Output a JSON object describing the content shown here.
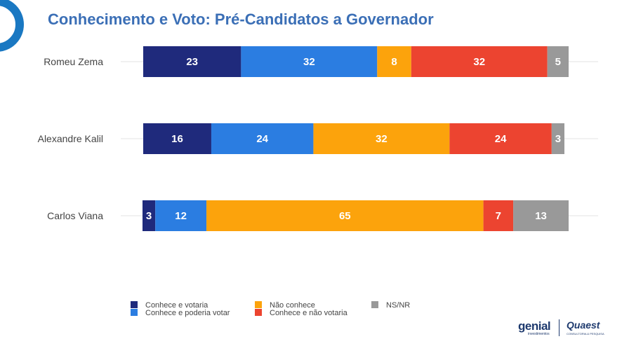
{
  "header": {
    "title": "Conhecimento e Voto: Pré-Candidatos a Governador"
  },
  "colors": {
    "conhece_votaria": "#1f2a7c",
    "conhece_poderia_votar": "#2b7de1",
    "nao_conhece": "#fca30c",
    "conhece_nao_votaria": "#ec4430",
    "ns_nr": "#999999",
    "title": "#3b6fb6",
    "brand": "#1e3a6e"
  },
  "chart_data": {
    "type": "bar",
    "orientation": "horizontal",
    "stacked": true,
    "title": "Conhecimento e Voto: Pré-Candidatos a Governador",
    "categories": [
      "Romeu Zema",
      "Alexandre Kalil",
      "Carlos Viana"
    ],
    "series": [
      {
        "name": "Conhece e votaria",
        "values": [
          23,
          16,
          3
        ],
        "color": "#1f2a7c"
      },
      {
        "name": "Conhece e poderia votar",
        "values": [
          32,
          24,
          12
        ],
        "color": "#2b7de1"
      },
      {
        "name": "Não conhece",
        "values": [
          8,
          32,
          65
        ],
        "color": "#fca30c"
      },
      {
        "name": "Conhece e não votaria",
        "values": [
          32,
          24,
          7
        ],
        "color": "#ec4430"
      },
      {
        "name": "NS/NR",
        "values": [
          5,
          3,
          13
        ],
        "color": "#999999"
      }
    ],
    "xlim": [
      0,
      100
    ],
    "legend_position": "bottom",
    "grid": false
  },
  "legend": {
    "items": [
      "Conhece e votaria",
      "Conhece e poderia votar",
      "Não conhece",
      "Conhece e não votaria",
      "NS/NR"
    ]
  },
  "brand": {
    "genial": "genial",
    "genial_sub": "investimentos",
    "quaest": "Quaest",
    "quaest_sub": "CONSULTORIA & PESQUISA"
  }
}
